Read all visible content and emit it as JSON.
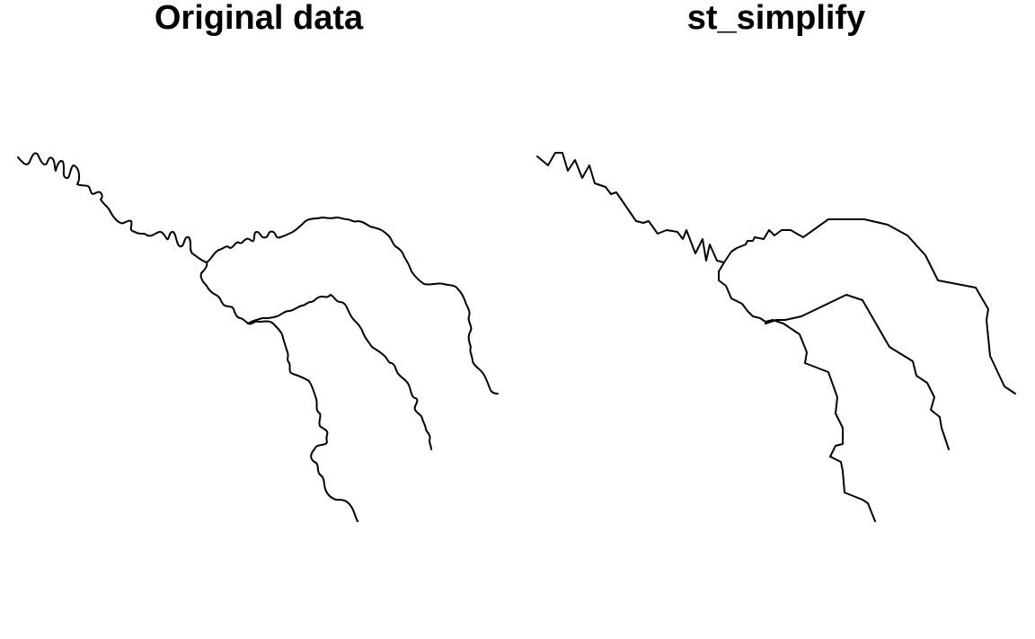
{
  "panels": [
    {
      "id": "original",
      "title": "Original data"
    },
    {
      "id": "simplified",
      "title": "st_simplify"
    }
  ],
  "colors": {
    "line": "#000000",
    "background": "#ffffff"
  }
}
